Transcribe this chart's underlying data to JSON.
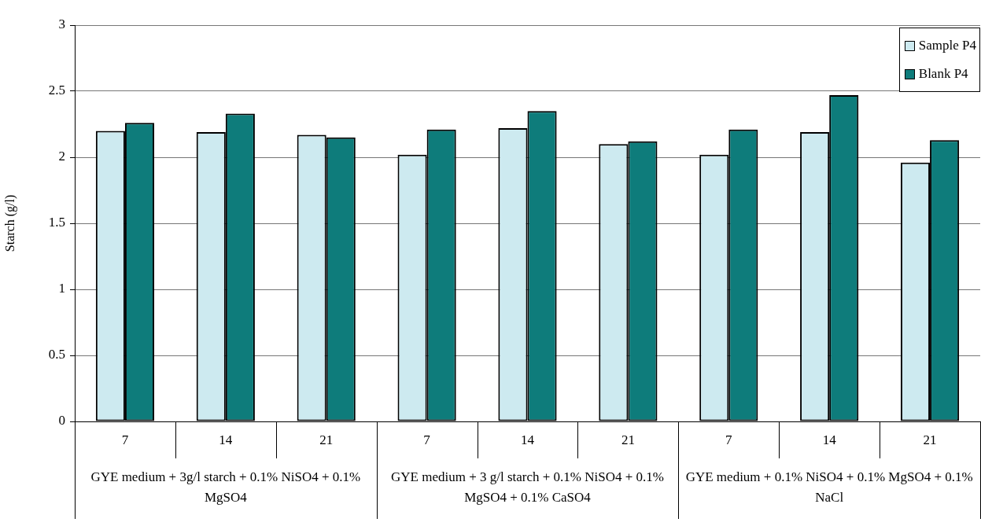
{
  "chart_data": {
    "type": "bar",
    "ylabel": "Starch (g/l)",
    "categories": [
      "7",
      "14",
      "21",
      "7",
      "14",
      "21",
      "7",
      "14",
      "21"
    ],
    "series": [
      {
        "name": "Sample P4",
        "color": "#cdeaf0",
        "values": [
          2.2,
          2.19,
          2.17,
          2.02,
          2.22,
          2.1,
          2.02,
          2.19,
          1.96
        ]
      },
      {
        "name": "Blank P4",
        "color": "#0e7c7b",
        "values": [
          2.26,
          2.33,
          2.15,
          2.21,
          2.35,
          2.12,
          2.21,
          2.47,
          2.13
        ]
      }
    ],
    "annotations": [
      "GYE medium + 3g/l starch + 0.1% NiSO4 + 0.1% MgSO4",
      "GYE medium + 3 g/l starch + 0.1% NiSO4 + 0.1% MgSO4 + 0.1% CaSO4",
      "GYE medium + 0.1% NiSO4 + 0.1% MgSO4 + 0.1% NaCl"
    ],
    "ylim": [
      0,
      3
    ],
    "yticks": [
      0,
      0.5,
      1,
      1.5,
      2,
      2.5,
      3
    ],
    "grid": "y",
    "legend": "top right"
  }
}
